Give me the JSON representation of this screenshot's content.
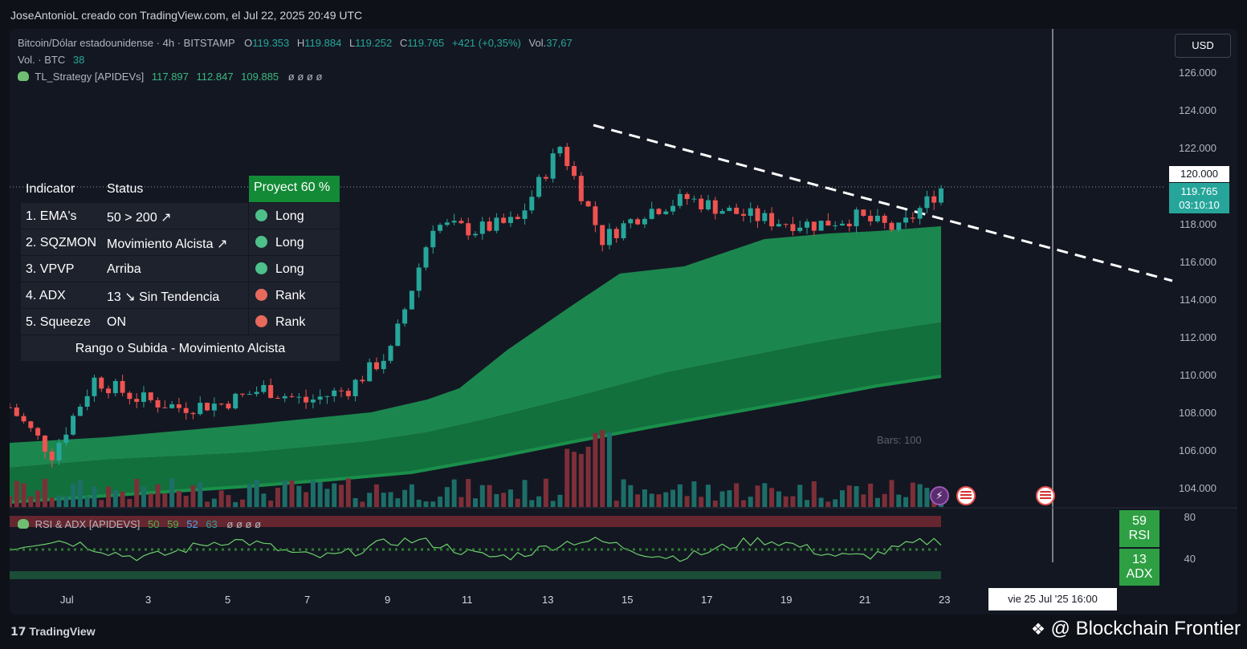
{
  "header": {
    "credit": "JoseAntonioL creado con TradingView.com, el Jul 22, 2025 20:49 UTC"
  },
  "legend": {
    "symbol": "Bitcoin/Dólar estadounidense · 4h · BITSTAMP",
    "o_label": "O",
    "o": "119.353",
    "h_label": "H",
    "h": "119.884",
    "l_label": "L",
    "l": "119.252",
    "c_label": "C",
    "c": "119.765",
    "change": "+421 (+0,35%)",
    "vol_label": "Vol.",
    "vol": "37,67",
    "vol_row_label": "Vol. · BTC",
    "vol_row_value": "38",
    "strategy_label": "TL_Strategy [APIDEVs]",
    "strategy_v1": "117.897",
    "strategy_v2": "112.847",
    "strategy_v3": "109.885",
    "strategy_empty": "ø  ø  ø  ø"
  },
  "currency_button": "USD",
  "price_axis": [
    "126.000",
    "124.000",
    "122.000",
    "118.000",
    "116.000",
    "114.000",
    "112.000",
    "110.000",
    "108.000",
    "106.000",
    "104.000"
  ],
  "price_120": "120.000",
  "current_price": "119.765",
  "countdown": "03:10:10",
  "table": {
    "header": {
      "indicator": "Indicator",
      "status": "Status",
      "project": "Proyect 60 %"
    },
    "rows": [
      {
        "indicator": "1. EMA's",
        "status": "50 > 200 ↗",
        "signal": "Long",
        "color": "#26a69a"
      },
      {
        "indicator": "2. SQZMON",
        "status": "Movimiento Alcista ↗",
        "signal": "Long",
        "color": "#26a69a"
      },
      {
        "indicator": "3. VPVP",
        "status": "Arriba",
        "signal": "Long",
        "color": "#26a69a"
      },
      {
        "indicator": "4. ADX",
        "status": "13 ↘ Sin Tendencia",
        "signal": "Rank",
        "color": "#ef5350"
      },
      {
        "indicator": "5. Squeeze",
        "status": "ON",
        "signal": "Rank",
        "color": "#ef5350"
      }
    ],
    "footer": "Rango o Subida - Movimiento Alcista"
  },
  "bars_label": "Bars: 100",
  "rsi_panel": {
    "title": "RSI & ADX [APIDEVS]",
    "v1": "50",
    "v2": "59",
    "v3": "52",
    "v4": "63",
    "empty": "ø  ø  ø  ø",
    "axis_80": "80",
    "axis_40": "40",
    "rsi_value": "59",
    "rsi_label": "RSI",
    "adx_value": "13",
    "adx_label": "ADX"
  },
  "time_axis": [
    "Jul",
    "3",
    "5",
    "7",
    "9",
    "11",
    "13",
    "15",
    "17",
    "19",
    "21",
    "23"
  ],
  "crosshair_date": "vie 25 Jul '25   16:00",
  "footer": {
    "brand": "TradingView",
    "watermark": "@ Blockchain Frontier"
  },
  "colors": {
    "up": "#26a69a",
    "down": "#ef5350",
    "band": "#22a55a",
    "bg": "#131722"
  },
  "chart_data": {
    "type": "candlestick",
    "title": "Bitcoin/Dólar estadounidense · 4h · BITSTAMP",
    "x_range": [
      "Jul 1",
      "Jul 23"
    ],
    "ylim": [
      103000,
      127000
    ],
    "close_path": [
      {
        "x": "Jul 1",
        "y": 108000
      },
      {
        "x": "Jul 2",
        "y": 105500
      },
      {
        "x": "Jul 3",
        "y": 109500
      },
      {
        "x": "Jul 4",
        "y": 108500
      },
      {
        "x": "Jul 5",
        "y": 108000
      },
      {
        "x": "Jul 6",
        "y": 108200
      },
      {
        "x": "Jul 7",
        "y": 109000
      },
      {
        "x": "Jul 8",
        "y": 108300
      },
      {
        "x": "Jul 9",
        "y": 109000
      },
      {
        "x": "Jul 10",
        "y": 111000
      },
      {
        "x": "Jul 11",
        "y": 117800
      },
      {
        "x": "Jul 12",
        "y": 117500
      },
      {
        "x": "Jul 13",
        "y": 118000
      },
      {
        "x": "Jul 14",
        "y": 122000
      },
      {
        "x": "Jul 15",
        "y": 117000
      },
      {
        "x": "Jul 16",
        "y": 118500
      },
      {
        "x": "Jul 17",
        "y": 119200
      },
      {
        "x": "Jul 18",
        "y": 118500
      },
      {
        "x": "Jul 19",
        "y": 118000
      },
      {
        "x": "Jul 20",
        "y": 117800
      },
      {
        "x": "Jul 21",
        "y": 118200
      },
      {
        "x": "Jul 22",
        "y": 117500
      },
      {
        "x": "Jul 23",
        "y": 119765
      }
    ]
  }
}
